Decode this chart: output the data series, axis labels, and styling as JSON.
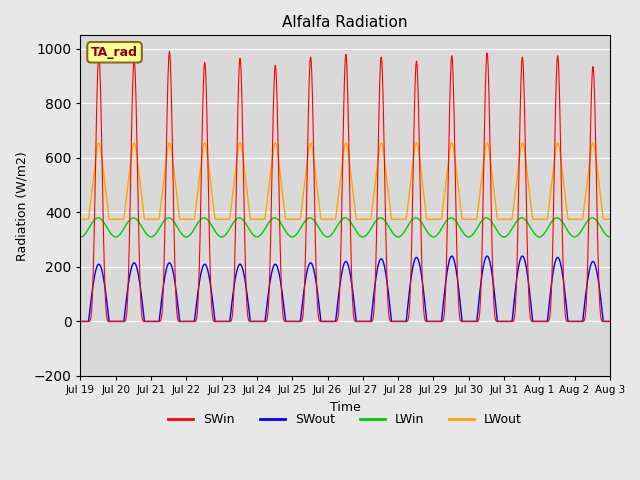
{
  "title": "Alfalfa Radiation",
  "xlabel": "Time",
  "ylabel": "Radiation (W/m2)",
  "ylim": [
    -200,
    1050
  ],
  "yticks": [
    -200,
    0,
    200,
    400,
    600,
    800,
    1000
  ],
  "annotation": "TA_rad",
  "x_tick_labels": [
    "Jul 19",
    "Jul 20",
    "Jul 21",
    "Jul 22",
    "Jul 23",
    "Jul 24",
    "Jul 25",
    "Jul 26",
    "Jul 27",
    "Jul 28",
    "Jul 29",
    "Jul 30",
    "Jul 31",
    "Aug 1",
    "Aug 2",
    "Aug 3"
  ],
  "colors": {
    "SWin": "#ff0000",
    "SWout": "#0000ff",
    "LWin": "#00cc00",
    "LWout": "#ffa500"
  },
  "background_color": "#d9d9d9",
  "fig_background": "#e8e8e8",
  "n_days": 16,
  "hours_per_day": 24,
  "dt": 0.25,
  "SWin_peaks": [
    975,
    960,
    990,
    950,
    965,
    940,
    970,
    980,
    970,
    955,
    975,
    985,
    970,
    975,
    935,
    0
  ],
  "SWout_peaks": [
    210,
    215,
    215,
    210,
    210,
    210,
    215,
    220,
    230,
    235,
    240,
    240,
    240,
    235,
    220,
    0
  ],
  "LWin_base": 310,
  "LWin_amp": 70,
  "LWout_night": 375,
  "LWout_day_amp": 200,
  "LWout_peaks": [
    560,
    575,
    590,
    610,
    620,
    580,
    565,
    580,
    570,
    590,
    575,
    590,
    580,
    590,
    610,
    0
  ]
}
